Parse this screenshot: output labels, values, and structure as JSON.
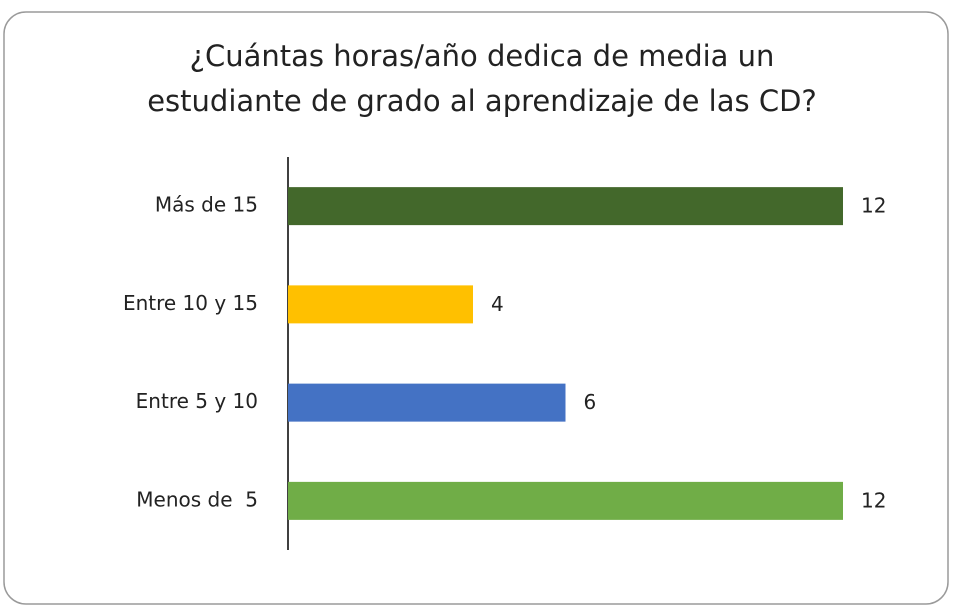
{
  "chart_data": {
    "type": "bar",
    "orientation": "horizontal",
    "title": [
      "¿Cuántas horas/año dedica de media un",
      "estudiante de grado al aprendizaje de las CD?"
    ],
    "categories": [
      "Más de 15",
      "Entre 10 y 15",
      "Entre 5 y 10",
      "Menos de  5"
    ],
    "values": [
      12,
      4,
      6,
      12
    ],
    "colors": [
      "#43682b",
      "#ffc000",
      "#4472c4",
      "#70ad47"
    ],
    "xlim": [
      0,
      12
    ]
  }
}
